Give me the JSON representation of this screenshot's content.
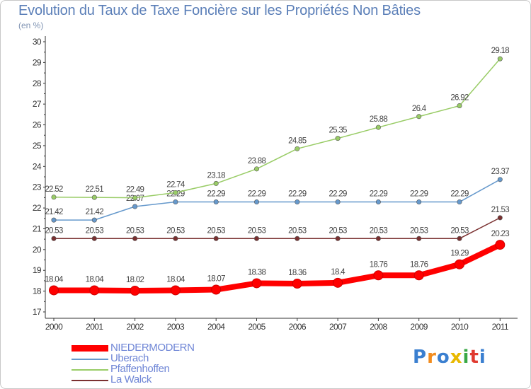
{
  "title": "Evolution du Taux de Taxe Foncière sur les Propriétés Non Bâties",
  "subtitle": "(en %)",
  "logo": "Proxiti",
  "chart_data": {
    "type": "line",
    "x": [
      "2000",
      "2001",
      "2002",
      "2003",
      "2004",
      "2005",
      "2006",
      "2007",
      "2008",
      "2009",
      "2010",
      "2011"
    ],
    "ylim": [
      17,
      30
    ],
    "yticks": [
      17,
      18,
      19,
      20,
      21,
      22,
      23,
      24,
      25,
      26,
      27,
      28,
      29,
      30
    ],
    "grid": false,
    "legend_position": "bottom-left",
    "series": [
      {
        "name": "NIEDERMODERN",
        "color": "#ff0000",
        "values": [
          18.04,
          18.04,
          18.02,
          18.04,
          18.07,
          18.38,
          18.36,
          18.4,
          18.76,
          18.76,
          19.29,
          20.23
        ],
        "labels": [
          "18.04",
          "18.04",
          "18.02",
          "18.04",
          "18.07",
          "18.38",
          "18.36",
          "18.4",
          "18.76",
          "18.76",
          "19.29",
          "20.23"
        ]
      },
      {
        "name": "Uberach",
        "color": "#6699cc",
        "values": [
          21.42,
          21.42,
          22.07,
          22.29,
          22.29,
          22.29,
          22.29,
          22.29,
          22.29,
          22.29,
          22.29,
          23.37
        ],
        "labels": [
          "21.42",
          "21.42",
          "22.07",
          "22.29",
          "22.29",
          "22.29",
          "22.29",
          "22.29",
          "22.29",
          "22.29",
          "22.29",
          "23.37"
        ]
      },
      {
        "name": "Pfaffenhoffen",
        "color": "#99cc66",
        "values": [
          22.52,
          22.51,
          22.49,
          22.74,
          23.18,
          23.88,
          24.85,
          25.35,
          25.88,
          26.4,
          26.92,
          29.18
        ],
        "labels": [
          "22.52",
          "22.51",
          "22.49",
          "22.74",
          "23.18",
          "23.88",
          "24.85",
          "25.35",
          "25.88",
          "26.4",
          "26.92",
          "29.18"
        ]
      },
      {
        "name": "La Walck",
        "color": "#7a3030",
        "values": [
          20.53,
          20.53,
          20.53,
          20.53,
          20.53,
          20.53,
          20.53,
          20.53,
          20.53,
          20.53,
          20.53,
          21.53
        ],
        "labels": [
          "20.53",
          "20.53",
          "20.53",
          "20.53",
          "20.53",
          "20.53",
          "20.53",
          "20.53",
          "20.53",
          "20.53",
          "20.53",
          "21.53"
        ]
      }
    ]
  }
}
